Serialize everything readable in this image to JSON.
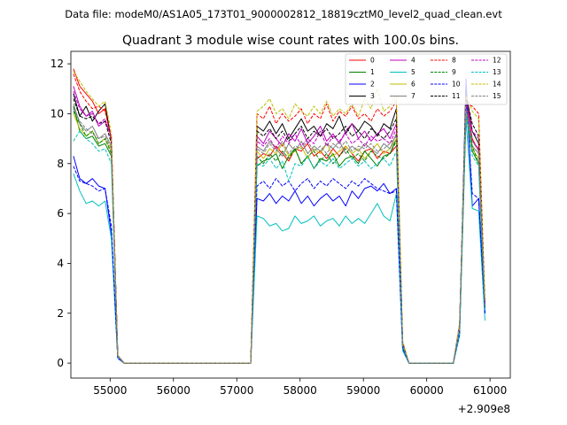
{
  "chart_data": {
    "type": "line",
    "suptitle": "Data file: modeM0/AS1A05_173T01_9000002812_18819cztM0_level2_quad_clean.evt",
    "title": "Quadrant 3 module wise count rates with 100.0s bins.",
    "xlabel": "",
    "ylabel": "",
    "x_offset_label": "+2.909e8",
    "xlim": [
      54380,
      61320
    ],
    "ylim": [
      -0.6,
      12.5
    ],
    "x_ticks": [
      55000,
      56000,
      57000,
      58000,
      59000,
      60000,
      61000
    ],
    "y_ticks": [
      0,
      2,
      4,
      6,
      8,
      10,
      12
    ],
    "gap_value": 0,
    "segments": [
      {
        "start": 54420,
        "step": 100,
        "count": 8
      },
      {
        "start": 57320,
        "step": 100,
        "count": 24
      },
      {
        "start": 60520,
        "step": 100,
        "count": 5
      }
    ],
    "series": [
      {
        "name": "0",
        "color": "#ff0000",
        "dash": "solid",
        "values": [
          11.8,
          11.1,
          10.8,
          10.5,
          10.0,
          10.2,
          9.0,
          0.3,
          8.2,
          8.4,
          8.3,
          8.7,
          8.4,
          8.1,
          8.6,
          8.5,
          8.8,
          8.3,
          8.5,
          8.2,
          8.6,
          8.3,
          8.7,
          8.4,
          8.1,
          8.5,
          8.6,
          8.2,
          8.5,
          8.4,
          8.7,
          0.8,
          1.5,
          10.6,
          9.0,
          8.5,
          2.2
        ]
      },
      {
        "name": "1",
        "color": "#008000",
        "dash": "solid",
        "values": [
          10.3,
          9.3,
          9.0,
          9.1,
          8.7,
          8.8,
          8.3,
          0.3,
          7.9,
          8.1,
          8.2,
          8.4,
          7.8,
          8.3,
          8.6,
          8.0,
          8.3,
          7.8,
          8.2,
          8.1,
          8.4,
          7.9,
          8.2,
          8.3,
          8.0,
          8.5,
          8.2,
          7.9,
          8.3,
          8.4,
          9.0,
          0.7,
          1.4,
          10.0,
          8.5,
          8.0,
          2.2
        ]
      },
      {
        "name": "2",
        "color": "#0000ff",
        "dash": "solid",
        "values": [
          8.3,
          7.4,
          7.2,
          7.4,
          7.1,
          7.0,
          5.2,
          0.2,
          6.6,
          6.5,
          6.8,
          6.4,
          6.7,
          6.5,
          6.9,
          6.4,
          6.7,
          6.3,
          6.6,
          6.8,
          6.5,
          6.7,
          6.3,
          6.9,
          6.6,
          7.0,
          7.1,
          6.9,
          7.2,
          6.8,
          7.0,
          0.6,
          1.2,
          11.4,
          6.3,
          6.6,
          2.0
        ]
      },
      {
        "name": "3",
        "color": "#000000",
        "dash": "solid",
        "values": [
          10.8,
          9.9,
          10.3,
          9.7,
          10.1,
          10.4,
          8.9,
          0.3,
          9.5,
          9.3,
          9.7,
          9.2,
          9.6,
          9.0,
          9.4,
          9.8,
          9.3,
          9.5,
          9.1,
          9.6,
          9.4,
          9.9,
          9.2,
          9.6,
          9.3,
          9.7,
          9.5,
          9.1,
          9.6,
          9.4,
          10.2,
          0.8,
          1.5,
          10.9,
          9.3,
          8.8,
          2.3
        ]
      },
      {
        "name": "4",
        "color": "#bf00bf",
        "dash": "solid",
        "values": [
          11.1,
          10.3,
          9.9,
          10.1,
          9.5,
          9.7,
          9.1,
          0.3,
          9.1,
          8.8,
          9.3,
          9.0,
          8.7,
          9.2,
          8.9,
          9.4,
          8.8,
          9.1,
          9.5,
          8.9,
          9.2,
          8.8,
          9.3,
          9.6,
          9.0,
          9.3,
          8.9,
          9.2,
          9.4,
          9.0,
          9.6,
          0.8,
          1.5,
          10.5,
          8.9,
          8.6,
          2.3
        ]
      },
      {
        "name": "5",
        "color": "#00bfbf",
        "dash": "solid",
        "values": [
          7.6,
          6.9,
          6.4,
          6.5,
          6.3,
          6.5,
          5.0,
          0.2,
          5.9,
          5.8,
          5.5,
          5.6,
          5.3,
          5.4,
          5.9,
          5.6,
          5.7,
          5.9,
          5.5,
          5.7,
          5.8,
          5.5,
          5.9,
          5.6,
          5.8,
          5.6,
          6.0,
          6.4,
          5.9,
          5.7,
          6.8,
          0.5,
          1.1,
          9.8,
          6.2,
          6.1,
          1.7
        ]
      },
      {
        "name": "6",
        "color": "#bfbf00",
        "dash": "solid",
        "values": [
          10.0,
          9.4,
          9.1,
          9.3,
          8.8,
          9.0,
          8.5,
          0.3,
          8.5,
          8.2,
          8.6,
          8.4,
          8.8,
          8.3,
          8.5,
          8.7,
          8.2,
          8.6,
          8.4,
          8.8,
          8.3,
          8.5,
          8.7,
          8.4,
          8.6,
          8.2,
          8.5,
          8.8,
          8.4,
          8.6,
          9.0,
          0.7,
          1.4,
          10.1,
          8.6,
          8.2,
          2.2
        ]
      },
      {
        "name": "7",
        "color": "#808080",
        "dash": "solid",
        "values": [
          10.4,
          9.6,
          9.3,
          9.5,
          9.0,
          9.2,
          8.7,
          0.3,
          8.7,
          8.5,
          8.9,
          8.6,
          8.3,
          8.8,
          8.5,
          8.9,
          8.4,
          8.7,
          8.5,
          8.8,
          8.6,
          8.9,
          8.4,
          8.7,
          8.5,
          8.8,
          8.6,
          8.4,
          8.8,
          8.6,
          9.2,
          0.7,
          1.4,
          10.3,
          8.7,
          8.4,
          2.2
        ]
      },
      {
        "name": "8",
        "color": "#ff0000",
        "dash": "dashed",
        "values": [
          11.6,
          10.9,
          10.5,
          10.2,
          10.3,
          10.1,
          9.0,
          0.3,
          10.0,
          9.8,
          10.3,
          9.6,
          10.0,
          9.7,
          9.9,
          10.2,
          9.6,
          10.0,
          9.8,
          10.4,
          9.7,
          10.1,
          9.9,
          10.3,
          9.8,
          10.0,
          9.7,
          10.2,
          9.9,
          10.1,
          10.5,
          0.8,
          1.6,
          10.4,
          10.3,
          10.0,
          2.4
        ]
      },
      {
        "name": "9",
        "color": "#008000",
        "dash": "dashed",
        "values": [
          10.1,
          9.6,
          9.1,
          9.3,
          8.8,
          9.0,
          8.4,
          0.3,
          8.3,
          8.0,
          8.4,
          8.1,
          8.5,
          8.2,
          8.6,
          8.0,
          8.3,
          8.5,
          8.1,
          8.4,
          8.0,
          8.3,
          8.6,
          8.2,
          8.4,
          8.1,
          8.5,
          8.3,
          8.2,
          8.4,
          8.9,
          0.7,
          1.4,
          9.9,
          8.7,
          8.0,
          2.2
        ]
      },
      {
        "name": "10",
        "color": "#0000ff",
        "dash": "dashed",
        "values": [
          7.9,
          7.3,
          7.2,
          7.1,
          6.9,
          7.0,
          5.5,
          0.2,
          7.1,
          7.3,
          7.0,
          7.4,
          7.1,
          7.3,
          6.9,
          7.2,
          7.4,
          7.0,
          7.3,
          7.1,
          7.4,
          7.2,
          7.0,
          7.3,
          7.1,
          7.4,
          7.2,
          7.0,
          6.9,
          6.8,
          6.9,
          0.6,
          1.2,
          10.8,
          6.8,
          6.6,
          2.0
        ]
      },
      {
        "name": "11",
        "color": "#000000",
        "dash": "dashed",
        "values": [
          10.6,
          9.9,
          9.8,
          9.9,
          9.6,
          9.7,
          8.8,
          0.3,
          9.3,
          9.1,
          9.4,
          9.0,
          9.3,
          8.9,
          9.2,
          9.5,
          9.0,
          9.3,
          9.1,
          9.4,
          9.0,
          9.2,
          9.5,
          9.1,
          9.3,
          9.0,
          9.4,
          9.2,
          9.0,
          9.3,
          9.8,
          0.8,
          1.5,
          10.7,
          9.6,
          9.1,
          2.3
        ]
      },
      {
        "name": "12",
        "color": "#bf00bf",
        "dash": "dashed",
        "values": [
          10.9,
          10.2,
          9.9,
          10.0,
          9.6,
          9.8,
          9.0,
          0.3,
          8.9,
          8.7,
          9.0,
          8.6,
          9.1,
          8.8,
          9.2,
          8.7,
          9.0,
          8.8,
          9.3,
          8.7,
          9.1,
          8.9,
          9.2,
          8.8,
          9.0,
          8.7,
          9.1,
          8.9,
          9.0,
          8.8,
          9.4,
          0.8,
          1.5,
          10.6,
          9.3,
          9.0,
          2.3
        ]
      },
      {
        "name": "13",
        "color": "#00bfbf",
        "dash": "dashed",
        "values": [
          8.9,
          9.3,
          9.0,
          8.8,
          8.5,
          8.6,
          8.0,
          0.3,
          8.0,
          7.9,
          8.2,
          7.8,
          8.1,
          7.3,
          8.0,
          7.9,
          8.3,
          7.8,
          8.1,
          7.9,
          8.2,
          7.8,
          8.0,
          8.2,
          7.9,
          8.1,
          7.8,
          8.0,
          8.2,
          7.9,
          8.5,
          0.7,
          1.3,
          10.0,
          8.3,
          7.9,
          2.1
        ]
      },
      {
        "name": "14",
        "color": "#bfbf00",
        "dash": "dashed",
        "values": [
          11.7,
          11.3,
          10.9,
          10.6,
          10.3,
          10.5,
          9.2,
          0.3,
          10.1,
          10.3,
          10.6,
          10.0,
          10.2,
          9.8,
          10.4,
          10.1,
          9.9,
          10.3,
          10.0,
          10.5,
          9.9,
          10.2,
          10.0,
          10.4,
          9.9,
          10.6,
          10.2,
          11.0,
          10.1,
          10.3,
          10.7,
          0.9,
          1.6,
          10.7,
          10.1,
          9.8,
          2.5
        ]
      },
      {
        "name": "15",
        "color": "#808080",
        "dash": "dashed",
        "values": [
          10.2,
          9.7,
          9.4,
          9.2,
          9.0,
          9.1,
          8.6,
          0.3,
          8.6,
          8.4,
          8.8,
          8.5,
          8.9,
          8.4,
          8.7,
          8.6,
          8.9,
          8.5,
          8.7,
          8.4,
          8.8,
          8.6,
          8.9,
          8.5,
          8.7,
          8.6,
          8.8,
          8.5,
          8.6,
          8.8,
          9.1,
          0.7,
          1.4,
          10.2,
          8.9,
          8.5,
          2.2
        ]
      }
    ],
    "legend": {
      "placement": "top-right",
      "columns": 4
    }
  }
}
